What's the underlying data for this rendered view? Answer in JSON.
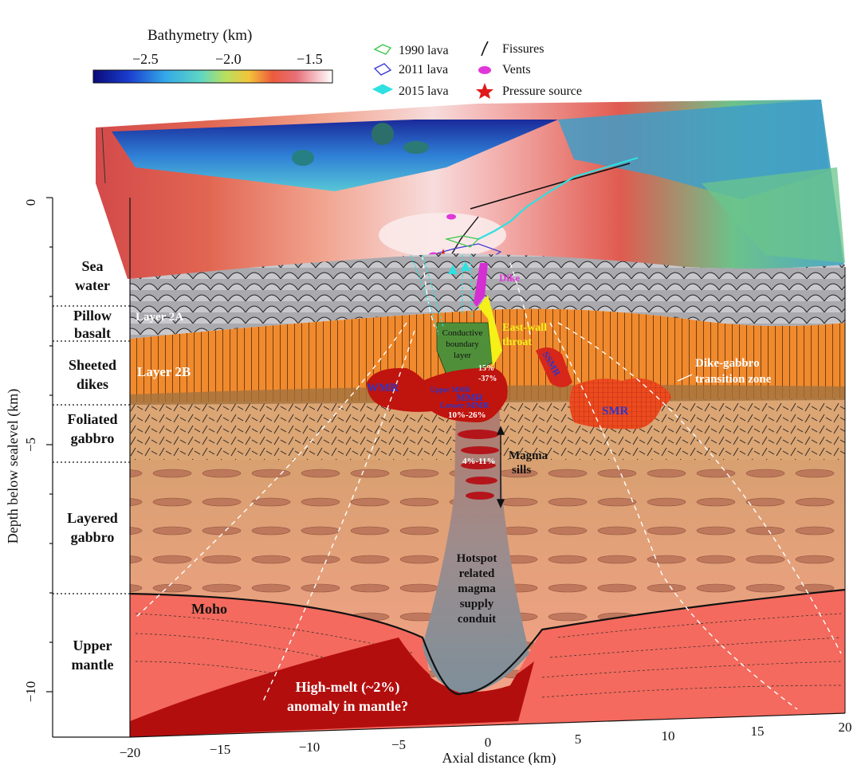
{
  "colorbar": {
    "title": "Bathymetry (km)",
    "ticks": [
      "−2.5",
      "−2.0",
      "−1.5"
    ]
  },
  "legend": {
    "lava_1990": "1990 lava",
    "lava_2011": "2011 lava",
    "lava_2015": "2015 lava",
    "fissures": "Fissures",
    "vents": "Vents",
    "pressure_source": "Pressure source"
  },
  "axes": {
    "ylabel": "Depth below sealevel  (km)",
    "xlabel": "Axial distance (km)",
    "y_ticks": [
      "0",
      "−5",
      "−10"
    ],
    "x_ticks": [
      "−20",
      "−15",
      "−10",
      "−5",
      "0",
      "5",
      "10",
      "15",
      "20"
    ]
  },
  "layers_left": {
    "sea_1": "Sea",
    "sea_2": "water",
    "pillow_1": "Pillow",
    "pillow_2": "basalt",
    "sheeted_1": "Sheeted",
    "sheeted_2": "dikes",
    "foliated_1": "Foliated",
    "foliated_2": "gabbro",
    "layered_1": "Layered",
    "layered_2": "gabbro",
    "mantle_1": "Upper",
    "mantle_2": "mantle"
  },
  "annotations": {
    "layer_2a": "Layer 2A",
    "layer_2b": "Layer 2B",
    "dike": "Dike",
    "conductive_1": "Conductive",
    "conductive_2": "boundary",
    "conductive_3": "layer",
    "east_wall_1": "East-wall",
    "east_wall_2": "throat",
    "dike_gabbro_1": "Dike-gabbro",
    "dike_gabbro_2": "transition zone",
    "wmr": "WMR",
    "ssmr": "SSMR",
    "smr": "SMR",
    "upper_mmr": "Upper MMR",
    "pct_upper_a": "15%",
    "pct_upper_b": "-37%",
    "mmr": "MMR",
    "lower_mmr": "Lower MMR",
    "pct_lower": "10%-26%",
    "pct_sills": "4%-11%",
    "magma_1": "Magma",
    "magma_2": "sills",
    "hotspot_1": "Hotspot",
    "hotspot_2": "related",
    "hotspot_3": "magma",
    "hotspot_4": "supply",
    "hotspot_5": "conduit",
    "moho": "Moho",
    "high_melt_1": "High-melt (~2%)",
    "high_melt_2": "anomaly in mantle?"
  },
  "colors": {
    "sea_grey": "#a9a9ae",
    "sheeted_orange": "#f08a2e",
    "gabbro": "#e0a072",
    "mantle": "#f46a5e",
    "high_melt": "#b30e0e",
    "magma": "#d7261a",
    "conductive_green": "#4f8f3a",
    "dike_magenta": "#d42fd3",
    "throat_yellow": "#f4f018"
  }
}
